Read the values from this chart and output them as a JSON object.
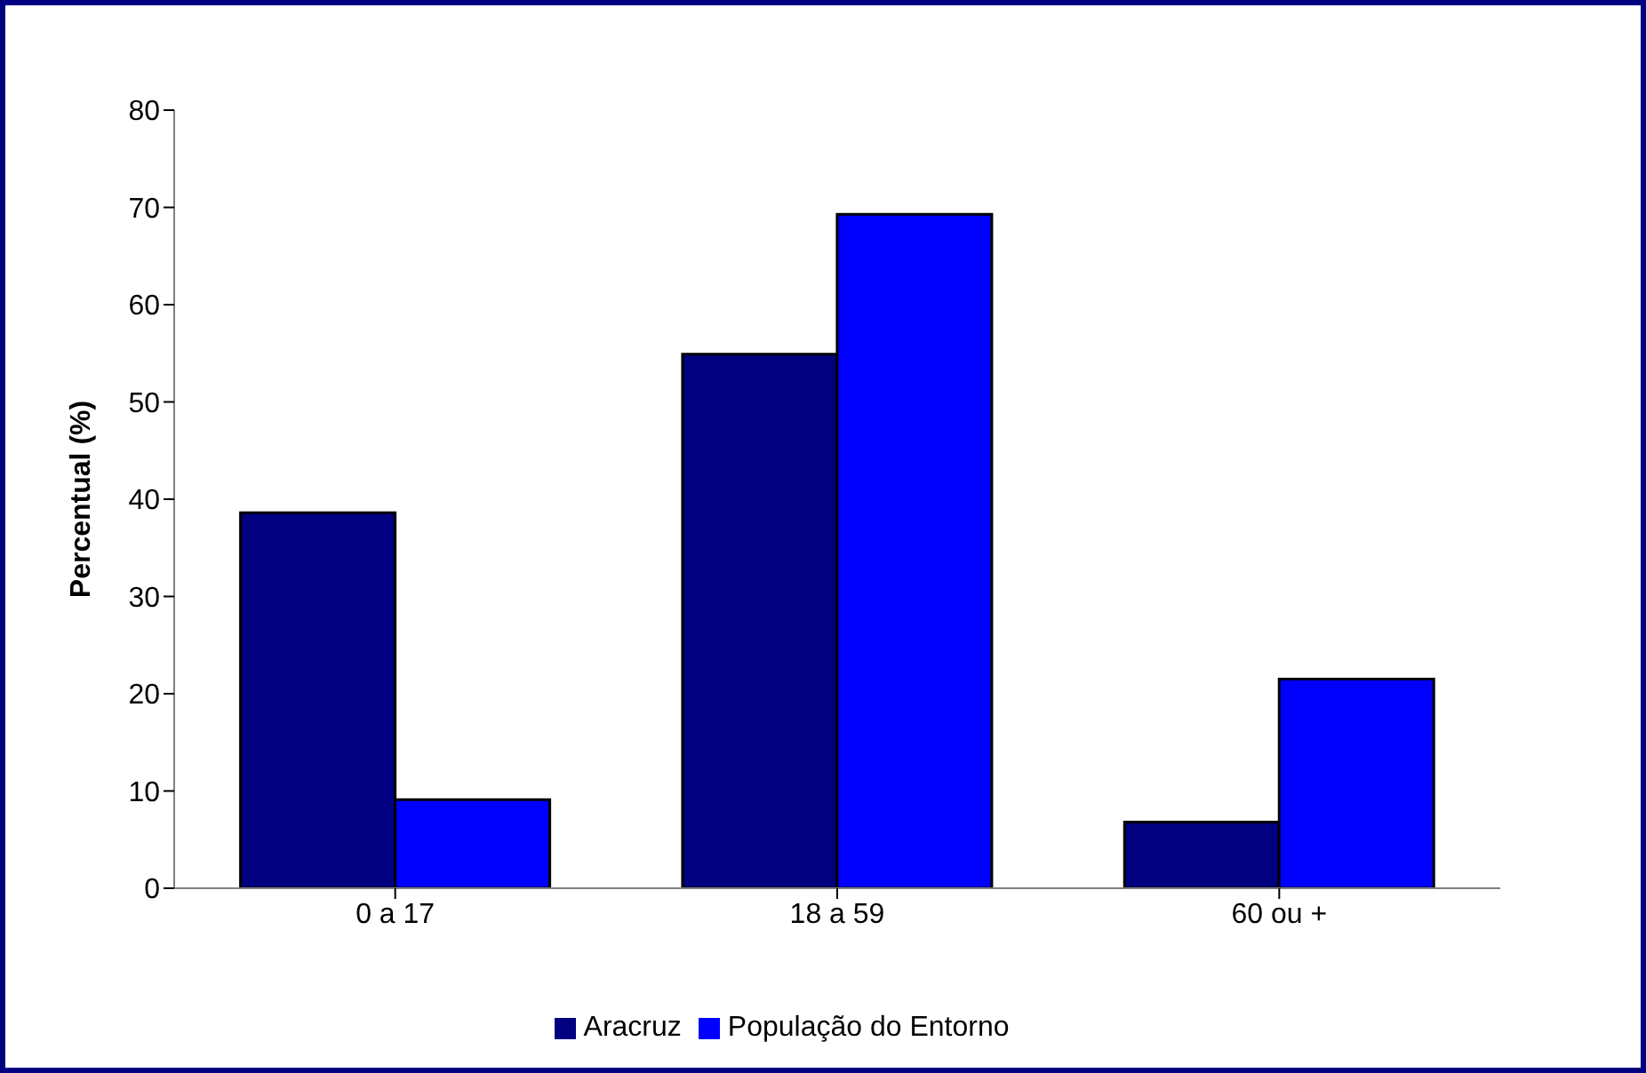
{
  "chart_data": {
    "type": "bar",
    "ylabel": "Percentual (%)",
    "categories": [
      "0 a 17",
      "18 a 59",
      "60  ou +"
    ],
    "series": [
      {
        "name": "Aracruz",
        "color": "#000080",
        "values": [
          38.6,
          54.9,
          6.8
        ]
      },
      {
        "name": "População do Entorno",
        "color": "#0000ff",
        "values": [
          9.1,
          69.3,
          21.5
        ]
      }
    ],
    "ylim": [
      0,
      80
    ],
    "yticks": [
      0,
      10,
      20,
      30,
      40,
      50,
      60,
      70,
      80
    ],
    "grid": false,
    "legend": "bottom"
  }
}
